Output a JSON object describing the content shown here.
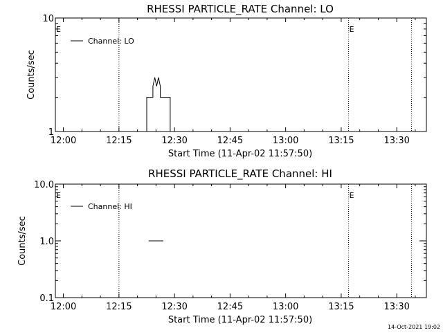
{
  "footer_timestamp": "14-Oct-2021 19:02",
  "chart_data": [
    {
      "type": "line",
      "title": "RHESSI PARTICLE_RATE Channel: LO",
      "xlabel": "Start Time (11-Apr-02 11:57:50)",
      "ylabel": "Counts/sec",
      "yscale": "log",
      "ylim": [
        1,
        10
      ],
      "yticks": [
        {
          "value": 1,
          "label": "1"
        },
        {
          "value": 10,
          "label": "10"
        }
      ],
      "xlim": [
        "11:57:50",
        "13:38:00"
      ],
      "xticks": [
        "12:00",
        "12:15",
        "12:30",
        "12:45",
        "13:00",
        "13:15",
        "13:30"
      ],
      "legend": {
        "placement": "top-left",
        "label": "Channel: LO"
      },
      "vlines": [
        {
          "time": "12:15",
          "label": ""
        },
        {
          "time": "13:17",
          "label": "E"
        },
        {
          "time": "13:34",
          "label": ""
        }
      ],
      "left_markers": [
        {
          "time": "11:57:50",
          "label": "E"
        }
      ],
      "series": [
        {
          "name": "Channel: LO",
          "points": [
            [
              "12:22:30",
              0.9
            ],
            [
              "12:22:30",
              2.0
            ],
            [
              "12:24:10",
              2.0
            ],
            [
              "12:24:10",
              2.5
            ],
            [
              "12:24:40",
              3.0
            ],
            [
              "12:25:10",
              2.5
            ],
            [
              "12:25:40",
              3.0
            ],
            [
              "12:26:10",
              2.5
            ],
            [
              "12:26:10",
              2.0
            ],
            [
              "12:28:50",
              2.0
            ],
            [
              "12:28:50",
              0.9
            ]
          ]
        }
      ],
      "grid": false
    },
    {
      "type": "line",
      "title": "RHESSI PARTICLE_RATE Channel: HI",
      "xlabel": "Start Time (11-Apr-02 11:57:50)",
      "ylabel": "Counts/sec",
      "yscale": "log",
      "ylim": [
        0.1,
        10
      ],
      "yticks": [
        {
          "value": 0.1,
          "label": "0.1"
        },
        {
          "value": 1,
          "label": "1.0"
        },
        {
          "value": 10,
          "label": "10.0"
        }
      ],
      "xlim": [
        "11:57:50",
        "13:38:00"
      ],
      "xticks": [
        "12:00",
        "12:15",
        "12:30",
        "12:45",
        "13:00",
        "13:15",
        "13:30"
      ],
      "legend": {
        "placement": "top-left",
        "label": "Channel: HI"
      },
      "vlines": [
        {
          "time": "12:15",
          "label": ""
        },
        {
          "time": "13:17",
          "label": "E"
        },
        {
          "time": "13:34",
          "label": ""
        }
      ],
      "left_markers": [
        {
          "time": "11:57:50",
          "label": "E"
        }
      ],
      "series": [
        {
          "name": "Channel: HI",
          "points": [
            [
              "12:23:00",
              1.0
            ],
            [
              "12:27:00",
              1.0
            ]
          ]
        }
      ],
      "right_tick": {
        "time": "13:38:00",
        "value": 1.0
      },
      "grid": false
    }
  ]
}
